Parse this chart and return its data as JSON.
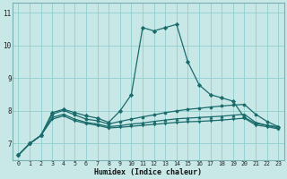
{
  "xlabel": "Humidex (Indice chaleur)",
  "background_color": "#c8e8e8",
  "grid_color": "#8fcece",
  "line_color": "#1a6b6b",
  "x_ticks": [
    0,
    1,
    2,
    3,
    4,
    5,
    6,
    7,
    8,
    9,
    10,
    11,
    12,
    13,
    14,
    15,
    16,
    17,
    18,
    19,
    20,
    21,
    22,
    23
  ],
  "y_ticks": [
    7,
    8,
    9,
    10,
    11
  ],
  "ylim": [
    6.5,
    11.3
  ],
  "xlim": [
    -0.5,
    23.5
  ],
  "series": [
    [
      6.65,
      7.0,
      7.25,
      7.95,
      8.05,
      7.95,
      7.85,
      7.78,
      7.65,
      8.0,
      8.5,
      10.55,
      10.45,
      10.55,
      10.65,
      9.5,
      8.8,
      8.5,
      8.4,
      8.3,
      7.8,
      7.62,
      7.56,
      7.52
    ],
    [
      6.65,
      7.0,
      7.25,
      7.9,
      8.02,
      7.88,
      7.75,
      7.7,
      7.6,
      7.68,
      7.75,
      7.82,
      7.88,
      7.95,
      8.0,
      8.05,
      8.08,
      8.12,
      8.15,
      8.18,
      8.2,
      7.9,
      7.68,
      7.52
    ],
    [
      6.65,
      7.0,
      7.25,
      7.8,
      7.9,
      7.75,
      7.65,
      7.6,
      7.52,
      7.55,
      7.6,
      7.63,
      7.68,
      7.72,
      7.76,
      7.78,
      7.8,
      7.82,
      7.84,
      7.87,
      7.9,
      7.65,
      7.56,
      7.48
    ],
    [
      6.65,
      7.0,
      7.25,
      7.75,
      7.85,
      7.7,
      7.62,
      7.56,
      7.48,
      7.5,
      7.53,
      7.56,
      7.59,
      7.62,
      7.65,
      7.67,
      7.68,
      7.7,
      7.72,
      7.75,
      7.78,
      7.57,
      7.52,
      7.45
    ]
  ],
  "markers": [
    "D",
    "o",
    "^",
    "v"
  ]
}
